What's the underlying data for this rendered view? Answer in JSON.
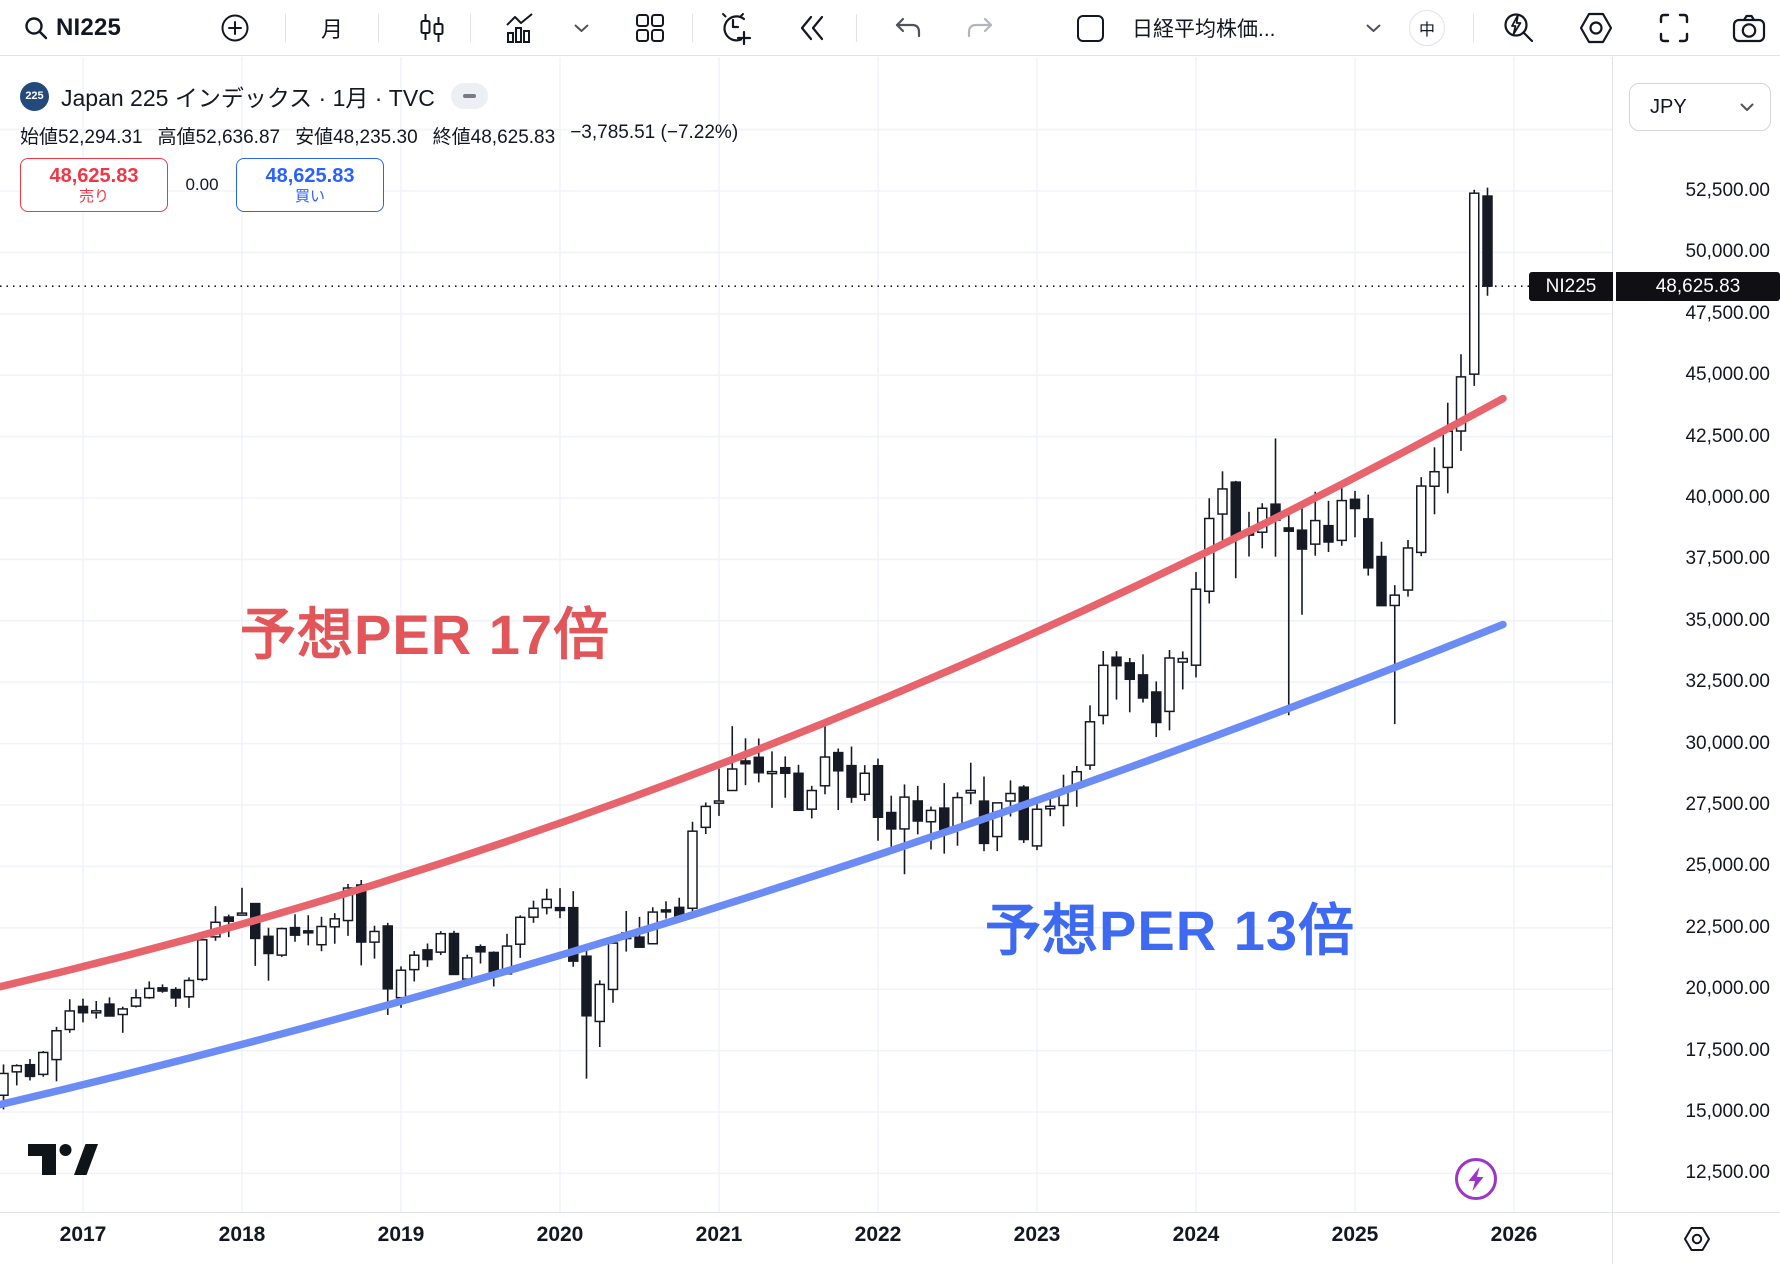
{
  "toolbar": {
    "symbol": "NI225",
    "timeframe": "月",
    "watchlist_symbol": "日経平均株価...",
    "size_badge": "中",
    "icons": [
      "search-icon",
      "plus-circle-icon",
      "candles-icon",
      "chart-style-icon",
      "chevron-down-icon",
      "layout-grid-icon",
      "alert-clock-icon",
      "replay-rewind-icon",
      "undo-icon",
      "redo-icon",
      "checkbox-icon",
      "flash-search-icon",
      "settings-hexagon-icon",
      "fullscreen-icon",
      "camera-icon"
    ]
  },
  "header": {
    "badge": "225",
    "title": "Japan 225 インデックス · 1月 · TVC",
    "ohlc": {
      "open_label": "始値",
      "open": "52,294.31",
      "high_label": "高値",
      "high": "52,636.87",
      "low_label": "安値",
      "low": "48,235.30",
      "close_label": "終値",
      "close": "48,625.83",
      "change": "−3,785.51 (−7.22%)"
    },
    "sell": {
      "price": "48,625.83",
      "label": "売り"
    },
    "spread": "0.00",
    "buy": {
      "price": "48,625.83",
      "label": "買い"
    }
  },
  "price_scale": {
    "currency": "JPY",
    "last_label": {
      "symbol": "NI225",
      "price": "48,625.83"
    }
  },
  "annotations": {
    "upper": {
      "text": "予想PER 17倍",
      "color": "#e25558"
    },
    "lower": {
      "text": "予想PER 13倍",
      "color": "#3e6af2"
    }
  },
  "colors": {
    "candle_down": "#161a25",
    "candle_up_fill": "#ffffff",
    "grid": "#f0f3fa",
    "border": "#e0e3eb",
    "sell_red": "#f23645",
    "buy_blue": "#2962ff",
    "per17_line": "#e8646d",
    "per13_line": "#6c8cf5",
    "flash_purple": "#9c36c6",
    "tag_bg": "#101014"
  },
  "chart_data": {
    "type": "candlestick",
    "title": "Japan 225 インデックス · 1月 · TVC",
    "symbol": "NI225",
    "interval": "1M",
    "currency": "JPY",
    "last_price": 48625.83,
    "ylim": [
      11000,
      55000
    ],
    "grid": true,
    "y_ticks": [
      {
        "v": 52500,
        "label": "52,500.00"
      },
      {
        "v": 50000,
        "label": "50,000.00"
      },
      {
        "v": 47500,
        "label": "47,500.00"
      },
      {
        "v": 45000,
        "label": "45,000.00"
      },
      {
        "v": 42500,
        "label": "42,500.00"
      },
      {
        "v": 40000,
        "label": "40,000.00"
      },
      {
        "v": 37500,
        "label": "37,500.00"
      },
      {
        "v": 35000,
        "label": "35,000.00"
      },
      {
        "v": 32500,
        "label": "32,500.00"
      },
      {
        "v": 30000,
        "label": "30,000.00"
      },
      {
        "v": 27500,
        "label": "27,500.00"
      },
      {
        "v": 25000,
        "label": "25,000.00"
      },
      {
        "v": 22500,
        "label": "22,500.00"
      },
      {
        "v": 20000,
        "label": "20,000.00"
      },
      {
        "v": 17500,
        "label": "17,500.00"
      },
      {
        "v": 15000,
        "label": "15,000.00"
      },
      {
        "v": 12500,
        "label": "12,500.00"
      }
    ],
    "x_years": [
      "2017",
      "2018",
      "2019",
      "2020",
      "2021",
      "2022",
      "2023",
      "2024",
      "2025",
      "2026"
    ],
    "per_lines": [
      {
        "label": "予想PER 17倍",
        "color": "#e8646d",
        "start_price": 20100,
        "mid_price": 29650,
        "end_price": 44050
      },
      {
        "label": "予想PER 13倍",
        "color": "#6c8cf5",
        "start_price": 15300,
        "mid_price": 23780,
        "end_price": 34850
      }
    ],
    "candles": [
      [
        "2016-07",
        15682,
        16938,
        15106,
        16569
      ],
      [
        "2016-08",
        16635,
        16943,
        16083,
        16887
      ],
      [
        "2016-09",
        16926,
        17156,
        16285,
        16450
      ],
      [
        "2016-10",
        16532,
        17482,
        16436,
        17425
      ],
      [
        "2016-11",
        17134,
        18465,
        16251,
        18308
      ],
      [
        "2016-12",
        18360,
        19592,
        18224,
        19114
      ],
      [
        "2017-01",
        19298,
        19615,
        18650,
        19041
      ],
      [
        "2017-02",
        19061,
        19519,
        18805,
        19119
      ],
      [
        "2017-03",
        19393,
        19668,
        18909,
        18909
      ],
      [
        "2017-04",
        18970,
        19289,
        18224,
        19197
      ],
      [
        "2017-05",
        19310,
        19998,
        19257,
        19651
      ],
      [
        "2017-06",
        19655,
        20318,
        19610,
        20033
      ],
      [
        "2017-07",
        20055,
        20195,
        19856,
        19925
      ],
      [
        "2017-08",
        19985,
        20080,
        19280,
        19646
      ],
      [
        "2017-09",
        19691,
        20481,
        19239,
        20356
      ],
      [
        "2017-10",
        20400,
        22086,
        20328,
        22011
      ],
      [
        "2017-11",
        22132,
        23382,
        21972,
        22725
      ],
      [
        "2017-12",
        22938,
        23035,
        22119,
        22765
      ],
      [
        "2018-01",
        23073,
        24129,
        23065,
        23098
      ],
      [
        "2018-02",
        23486,
        23498,
        20950,
        22068
      ],
      [
        "2018-03",
        22153,
        22502,
        20347,
        21454
      ],
      [
        "2018-04",
        21388,
        22508,
        21317,
        22468
      ],
      [
        "2018-05",
        22508,
        23050,
        21931,
        22201
      ],
      [
        "2018-06",
        22376,
        23011,
        21785,
        22304
      ],
      [
        "2018-07",
        21811,
        22949,
        21547,
        22553
      ],
      [
        "2018-08",
        22540,
        23094,
        21851,
        22865
      ],
      [
        "2018-09",
        22796,
        24286,
        22172,
        24120
      ],
      [
        "2018-10",
        24245,
        24448,
        20971,
        21920
      ],
      [
        "2018-11",
        21917,
        22583,
        21243,
        22351
      ],
      [
        "2018-12",
        22574,
        22698,
        18948,
        20015
      ],
      [
        "2019-01",
        19655,
        20929,
        19241,
        20773
      ],
      [
        "2019-02",
        20797,
        21556,
        20315,
        21385
      ],
      [
        "2019-03",
        21602,
        21860,
        20911,
        21206
      ],
      [
        "2019-04",
        21509,
        22362,
        21391,
        22259
      ],
      [
        "2019-05",
        22266,
        22376,
        20751,
        20601
      ],
      [
        "2019-06",
        20410,
        21404,
        20289,
        21276
      ],
      [
        "2019-07",
        21729,
        21823,
        21046,
        21522
      ],
      [
        "2019-08",
        21496,
        21540,
        20110,
        20704
      ],
      [
        "2019-09",
        20625,
        22255,
        20613,
        21756
      ],
      [
        "2019-10",
        21831,
        23008,
        21276,
        22927
      ],
      [
        "2019-11",
        22934,
        23608,
        22705,
        23294
      ],
      [
        "2019-12",
        23320,
        24091,
        23045,
        23657
      ],
      [
        "2020-01",
        23320,
        24115,
        22892,
        23205
      ],
      [
        "2020-02",
        23320,
        23995,
        20916,
        21143
      ],
      [
        "2020-03",
        21344,
        21719,
        16358,
        18917
      ],
      [
        "2020-04",
        18687,
        20365,
        17646,
        20194
      ],
      [
        "2020-05",
        19991,
        21917,
        19448,
        21878
      ],
      [
        "2020-06",
        22062,
        23185,
        21530,
        22288
      ],
      [
        "2020-07",
        22121,
        22946,
        21710,
        21710
      ],
      [
        "2020-08",
        21851,
        23338,
        21920,
        23140
      ],
      [
        "2020-09",
        23229,
        23580,
        22880,
        23185
      ],
      [
        "2020-10",
        23332,
        23725,
        22948,
        22977
      ],
      [
        "2020-11",
        23295,
        26817,
        23176,
        26434
      ],
      [
        "2020-12",
        26590,
        27602,
        26319,
        27444
      ],
      [
        "2021-01",
        27575,
        28979,
        27055,
        27663
      ],
      [
        "2021-02",
        28091,
        30714,
        28089,
        28966
      ],
      [
        "2021-03",
        29294,
        30216,
        28308,
        29179
      ],
      [
        "2021-04",
        29441,
        30208,
        28419,
        28813
      ],
      [
        "2021-05",
        28812,
        29685,
        27385,
        28860
      ],
      [
        "2021-06",
        29019,
        29480,
        27795,
        28792
      ],
      [
        "2021-07",
        28791,
        29137,
        27283,
        27284
      ],
      [
        "2021-08",
        27331,
        28279,
        26954,
        28090
      ],
      [
        "2021-09",
        28282,
        30795,
        27937,
        29453
      ],
      [
        "2021-10",
        29634,
        29800,
        27293,
        28893
      ],
      [
        "2021-11",
        29104,
        29880,
        27588,
        27822
      ],
      [
        "2021-12",
        27937,
        29121,
        27666,
        28792
      ],
      [
        "2022-01",
        29098,
        29388,
        26044,
        27002
      ],
      [
        "2022-02",
        27194,
        27880,
        25775,
        26527
      ],
      [
        "2022-03",
        26526,
        28338,
        24681,
        27821
      ],
      [
        "2022-04",
        27665,
        28279,
        26304,
        26848
      ],
      [
        "2022-05",
        26818,
        27437,
        25688,
        27280
      ],
      [
        "2022-06",
        27374,
        28389,
        25520,
        26393
      ],
      [
        "2022-07",
        26517,
        28016,
        25841,
        27802
      ],
      [
        "2022-08",
        27993,
        29222,
        27530,
        28092
      ],
      [
        "2022-09",
        27658,
        28659,
        25621,
        25937
      ],
      [
        "2022-10",
        26215,
        27587,
        25622,
        27587
      ],
      [
        "2022-11",
        27663,
        28502,
        27032,
        27968
      ],
      [
        "2022-12",
        28226,
        28310,
        25953,
        26095
      ],
      [
        "2023-01",
        25834,
        27821,
        25661,
        27327
      ],
      [
        "2023-02",
        27346,
        27821,
        27046,
        27446
      ],
      [
        "2023-03",
        27482,
        28734,
        26632,
        28041
      ],
      [
        "2023-04",
        28203,
        29089,
        27427,
        28856
      ],
      [
        "2023-05",
        29123,
        31560,
        28931,
        30888
      ],
      [
        "2023-06",
        31148,
        33772,
        30785,
        33189
      ],
      [
        "2023-07",
        33517,
        33762,
        31791,
        33172
      ],
      [
        "2023-08",
        33287,
        33488,
        31275,
        32619
      ],
      [
        "2023-09",
        32797,
        33634,
        31674,
        31858
      ],
      [
        "2023-10",
        32101,
        32533,
        30269,
        30859
      ],
      [
        "2023-11",
        31311,
        33811,
        30538,
        33486
      ],
      [
        "2023-12",
        33318,
        33755,
        32205,
        33464
      ],
      [
        "2024-01",
        33193,
        36984,
        32693,
        36287
      ],
      [
        "2024-02",
        36202,
        39990,
        35704,
        39166
      ],
      [
        "2024-03",
        39347,
        41087,
        38271,
        40369
      ],
      [
        "2024-04",
        40646,
        40697,
        36733,
        38406
      ],
      [
        "2024-05",
        38694,
        39437,
        37617,
        38488
      ],
      [
        "2024-06",
        38608,
        39788,
        37950,
        39583
      ],
      [
        "2024-07",
        39749,
        42426,
        37611,
        39102
      ],
      [
        "2024-08",
        38781,
        39338,
        31156,
        38648
      ],
      [
        "2024-09",
        38690,
        39829,
        35247,
        37920
      ],
      [
        "2024-10",
        38122,
        40257,
        37651,
        39081
      ],
      [
        "2024-11",
        38874,
        39884,
        37801,
        38208
      ],
      [
        "2024-12",
        38274,
        40398,
        38055,
        39895
      ],
      [
        "2025-01",
        39945,
        40288,
        38401,
        39572
      ],
      [
        "2025-02",
        39152,
        40136,
        36841,
        37156
      ],
      [
        "2025-03",
        37617,
        38220,
        35618,
        35618
      ],
      [
        "2025-04",
        35624,
        36452,
        30793,
        36045
      ],
      [
        "2025-05",
        36252,
        38294,
        35986,
        37965
      ],
      [
        "2025-06",
        37785,
        40852,
        37635,
        40487
      ],
      [
        "2025-07",
        40478,
        42065,
        39337,
        41070
      ],
      [
        "2025-08",
        41245,
        43876,
        40195,
        42718
      ],
      [
        "2025-09",
        42727,
        45853,
        41919,
        44932
      ],
      [
        "2025-10",
        45043,
        52550,
        44567,
        52411
      ],
      [
        "2025-11",
        52294,
        52637,
        48235,
        48626
      ]
    ]
  }
}
